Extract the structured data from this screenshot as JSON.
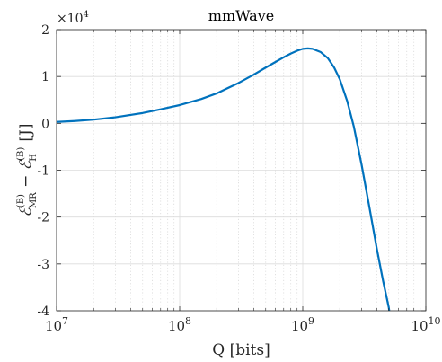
{
  "chart_data": {
    "type": "line",
    "title": "mmWave",
    "xlabel": "Q [bits]",
    "ylabel": {
      "main": "ℰ",
      "sub1": "MR",
      "sup1": "(B)",
      "minus": " − ",
      "main2": "ℰ",
      "sub2": "H",
      "sup2": "(B)",
      "unit": " [J]"
    },
    "x_scale": "log",
    "xlim": [
      10000000,
      10000000000
    ],
    "ylim": [
      -40000,
      20000
    ],
    "y_multiplier_label": {
      "base": "×10",
      "exp": "4"
    },
    "x_ticks": [
      {
        "value": 10000000,
        "base": "10",
        "exp": "7"
      },
      {
        "value": 100000000,
        "base": "10",
        "exp": "8"
      },
      {
        "value": 1000000000,
        "base": "10",
        "exp": "9"
      },
      {
        "value": 10000000000,
        "base": "10",
        "exp": "10"
      }
    ],
    "y_ticks": [
      {
        "value": 20000,
        "label": "2"
      },
      {
        "value": 10000,
        "label": "1"
      },
      {
        "value": 0,
        "label": "0"
      },
      {
        "value": -10000,
        "label": "-1"
      },
      {
        "value": -20000,
        "label": "-2"
      },
      {
        "value": -30000,
        "label": "-3"
      },
      {
        "value": -40000,
        "label": "-4"
      }
    ],
    "grid": true,
    "series": [
      {
        "color": "#0072BD",
        "x": [
          10000000,
          14000000,
          20000000,
          30000000,
          50000000,
          70000000,
          100000000,
          150000000,
          200000000,
          300000000,
          400000000,
          500000000,
          600000000,
          700000000,
          800000000,
          900000000,
          1000000000,
          1100000000,
          1200000000,
          1400000000,
          1600000000,
          1800000000,
          2000000000,
          2300000000,
          2600000000,
          3000000000,
          3500000000,
          4000000000,
          4500000000,
          5000000000,
          5100000000
        ],
        "y": [
          300,
          500,
          800,
          1300,
          2200,
          3000,
          3900,
          5200,
          6400,
          8600,
          10400,
          11900,
          13100,
          14100,
          14900,
          15500,
          15900,
          16000,
          15900,
          15200,
          13900,
          11900,
          9400,
          4700,
          -700,
          -8700,
          -18300,
          -26800,
          -33700,
          -39300,
          -41000
        ]
      }
    ]
  }
}
